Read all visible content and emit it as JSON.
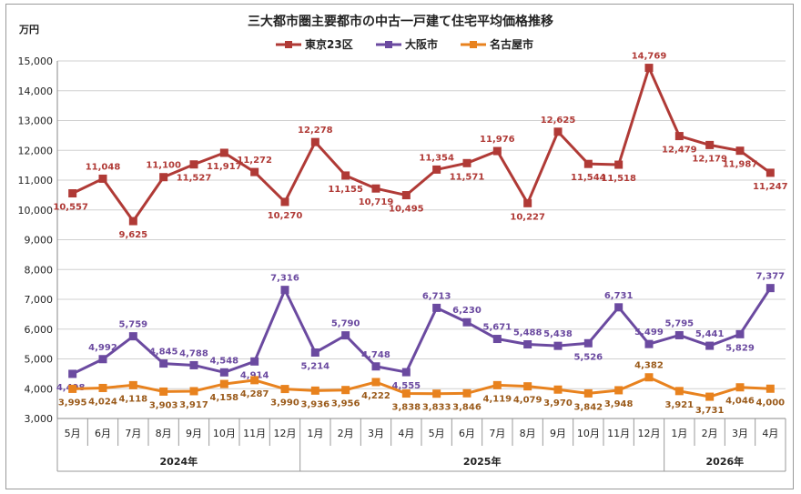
{
  "chart_data": {
    "type": "line",
    "title": "三大都市圏主要都市の中古一戸建て住宅平均価格推移",
    "unit_label": "万円",
    "ylim": [
      3000,
      15000
    ],
    "yticks": [
      "3,000",
      "4,000",
      "5,000",
      "6,000",
      "7,000",
      "8,000",
      "9,000",
      "10,000",
      "11,000",
      "12,000",
      "13,000",
      "14,000",
      "15,000"
    ],
    "grid": "horizontal",
    "legend_position": "top",
    "categories": [
      "5月",
      "6月",
      "7月",
      "8月",
      "9月",
      "10月",
      "11月",
      "12月",
      "1月",
      "2月",
      "3月",
      "4月",
      "5月",
      "6月",
      "7月",
      "8月",
      "9月",
      "10月",
      "11月",
      "12月",
      "1月",
      "2月",
      "3月",
      "4月"
    ],
    "year_groups": [
      {
        "label": "2024年",
        "start": 0,
        "end": 7
      },
      {
        "label": "2025年",
        "start": 8,
        "end": 19
      },
      {
        "label": "2026年",
        "start": 20,
        "end": 23
      }
    ],
    "series": [
      {
        "name": "東京23区",
        "color": "#b03a36",
        "marker": "square",
        "values": [
          10557,
          11048,
          9625,
          11100,
          11527,
          11917,
          11272,
          10270,
          12278,
          11155,
          10719,
          10495,
          11354,
          11571,
          11976,
          10227,
          12625,
          11544,
          11518,
          14769,
          12479,
          12179,
          11987,
          11247
        ],
        "labels": [
          "10,557",
          "11,048",
          "9,625",
          "11,100",
          "11,527",
          "11,917",
          "11,272",
          "10,270",
          "12,278",
          "11,155",
          "10,719",
          "10,495",
          "11,354",
          "11,571",
          "11,976",
          "10,227",
          "12,625",
          "11,544",
          "11,518",
          "14,769",
          "12,479",
          "12,179",
          "11,987",
          "11,247"
        ]
      },
      {
        "name": "大阪市",
        "color": "#6b4aa0",
        "marker": "square",
        "values": [
          4498,
          4992,
          5759,
          4845,
          4788,
          4548,
          4914,
          7316,
          5214,
          5790,
          4748,
          4555,
          6713,
          6230,
          5671,
          5488,
          5438,
          5526,
          6731,
          5499,
          5795,
          5441,
          5829,
          7377
        ],
        "labels": [
          "4,498",
          "4,992",
          "5,759",
          "4,845",
          "4,788",
          "4,548",
          "4,914",
          "7,316",
          "5,214",
          "5,790",
          "4,748",
          "4,555",
          "6,713",
          "6,230",
          "5,671",
          "5,488",
          "5,438",
          "5,526",
          "6,731",
          "5,499",
          "5,795",
          "5,441",
          "5,829",
          "7,377"
        ]
      },
      {
        "name": "名古屋市",
        "color": "#e8821e",
        "marker": "square",
        "values": [
          3995,
          4024,
          4118,
          3903,
          3917,
          4158,
          4287,
          3990,
          3936,
          3956,
          4222,
          3838,
          3833,
          3846,
          4119,
          4079,
          3970,
          3842,
          3948,
          4382,
          3921,
          3731,
          4046,
          4000
        ],
        "labels": [
          "3,995",
          "4,024",
          "4,118",
          "3,903",
          "3,917",
          "4,158",
          "4,287",
          "3,990",
          "3,936",
          "3,956",
          "4,222",
          "3,838",
          "3,833",
          "3,846",
          "4,119",
          "4,079",
          "3,970",
          "3,842",
          "3,948",
          "4,382",
          "3,921",
          "3,731",
          "4,046",
          "4,000"
        ]
      }
    ]
  }
}
